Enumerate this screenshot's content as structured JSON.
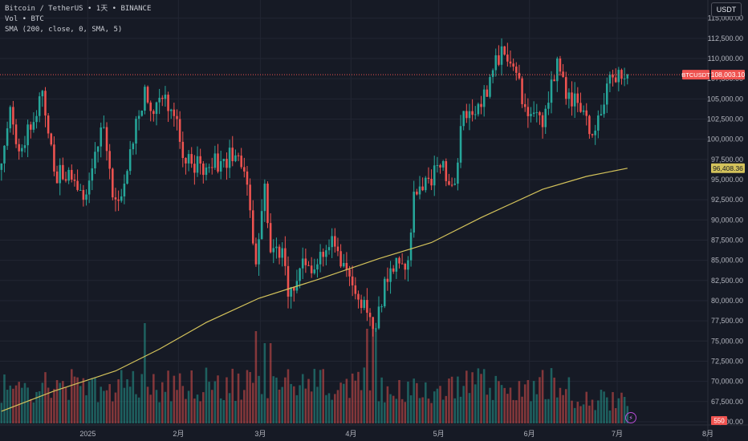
{
  "legend": {
    "title": "Bitcoin / TetherUS • 1天 • BINANCE",
    "volume": "Vol • BTC",
    "sma": "SMA (200, close, 0, SMA, 5)"
  },
  "currency_button": "USDT",
  "colors": {
    "up": "#26a69a",
    "down": "#ef5350",
    "sma": "#d4c35b",
    "background": "#161a25",
    "grid": "#222633"
  },
  "icons": {
    "replay": "bolt-icon"
  },
  "chart_data": {
    "type": "candlestick",
    "symbol": "BTCUSDT",
    "y_axis": {
      "range": [
        64600,
        117250
      ],
      "ticks": [
        "65,000.00",
        "67,500.00",
        "70,000.00",
        "72,500.00",
        "75,000.00",
        "77,500.00",
        "80,000.00",
        "82,500.00",
        "85,000.00",
        "87,500.00",
        "90,000.00",
        "92,500.00",
        "95,000.00",
        "97,500.00",
        "100,000.00",
        "102,500.00",
        "105,000.00",
        "107,500.00",
        "110,000.00",
        "112,500.00",
        "115,000.00"
      ]
    },
    "x_axis": {
      "ticks": [
        {
          "label": "2025",
          "date": "2025-01-01"
        },
        {
          "label": "2月",
          "date": "2025-02-01"
        },
        {
          "label": "3月",
          "date": "2025-03-01"
        },
        {
          "label": "4月",
          "date": "2025-04-01"
        },
        {
          "label": "5月",
          "date": "2025-05-01"
        },
        {
          "label": "6月",
          "date": "2025-06-01"
        },
        {
          "label": "7月",
          "date": "2025-07-01"
        },
        {
          "label": "8月",
          "date": "2025-08-01"
        }
      ],
      "range": [
        "2024-12-02",
        "2025-08-01"
      ]
    },
    "last_price": {
      "label": "BTCUSDT",
      "value": 108003.1,
      "text": "108,003.10"
    },
    "sma_last": {
      "value": 96408.36,
      "text": "96,408.36"
    },
    "volume_last": {
      "text": "550"
    },
    "grid": true,
    "anchors": [
      {
        "date": "2024-12-02",
        "close": 97000
      },
      {
        "date": "2024-12-05",
        "close": 104000
      },
      {
        "date": "2024-12-08",
        "close": 98500
      },
      {
        "date": "2024-12-16",
        "close": 106000
      },
      {
        "date": "2024-12-20",
        "close": 96000
      },
      {
        "date": "2024-12-26",
        "close": 95000
      },
      {
        "date": "2024-12-30",
        "close": 92500
      },
      {
        "date": "2025-01-06",
        "close": 101500
      },
      {
        "date": "2025-01-09",
        "close": 92800
      },
      {
        "date": "2025-01-13",
        "close": 94500
      },
      {
        "date": "2025-01-20",
        "close": 106500
      },
      {
        "date": "2025-01-22",
        "close": 103500
      },
      {
        "date": "2025-01-26",
        "close": 105000
      },
      {
        "date": "2025-01-31",
        "close": 102500
      },
      {
        "date": "2025-02-03",
        "close": 97000
      },
      {
        "date": "2025-02-10",
        "close": 96500
      },
      {
        "date": "2025-02-20",
        "close": 98000
      },
      {
        "date": "2025-02-23",
        "close": 96000
      },
      {
        "date": "2025-02-27",
        "close": 84500
      },
      {
        "date": "2025-03-02",
        "close": 94500
      },
      {
        "date": "2025-03-04",
        "close": 86000
      },
      {
        "date": "2025-03-08",
        "close": 86500
      },
      {
        "date": "2025-03-10",
        "close": 80500
      },
      {
        "date": "2025-03-14",
        "close": 84000
      },
      {
        "date": "2025-03-20",
        "close": 84500
      },
      {
        "date": "2025-03-25",
        "close": 88000
      },
      {
        "date": "2025-03-31",
        "close": 83000
      },
      {
        "date": "2025-04-06",
        "close": 78500
      },
      {
        "date": "2025-04-08",
        "close": 76500
      },
      {
        "date": "2025-04-14",
        "close": 84000
      },
      {
        "date": "2025-04-20",
        "close": 85000
      },
      {
        "date": "2025-04-22",
        "close": 93500
      },
      {
        "date": "2025-05-01",
        "close": 96500
      },
      {
        "date": "2025-05-06",
        "close": 94500
      },
      {
        "date": "2025-05-09",
        "close": 103500
      },
      {
        "date": "2025-05-15",
        "close": 104000
      },
      {
        "date": "2025-05-22",
        "close": 111500
      },
      {
        "date": "2025-05-26",
        "close": 109000
      },
      {
        "date": "2025-05-30",
        "close": 104000
      },
      {
        "date": "2025-06-05",
        "close": 101500
      },
      {
        "date": "2025-06-10",
        "close": 110000
      },
      {
        "date": "2025-06-13",
        "close": 105000
      },
      {
        "date": "2025-06-17",
        "close": 104500
      },
      {
        "date": "2025-06-22",
        "close": 100500
      },
      {
        "date": "2025-06-28",
        "close": 108000
      },
      {
        "date": "2025-07-02",
        "close": 107500
      },
      {
        "date": "2025-07-04",
        "close": 108000
      }
    ]
  }
}
